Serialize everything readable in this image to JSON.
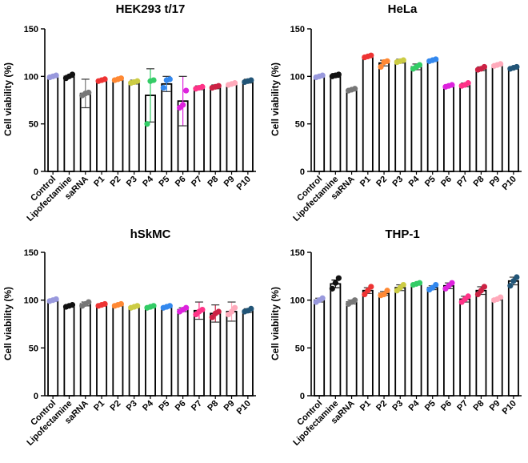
{
  "chart_data": [
    {
      "type": "bar",
      "title": "HEK293 t/17",
      "xlabel": "",
      "ylabel": "Cell viability (%)",
      "ylim": [
        0,
        150
      ],
      "yticks": [
        "0",
        "50",
        "100",
        "150"
      ],
      "categories": [
        "Control",
        "Lipofectamine",
        "saRNA",
        "P1",
        "P2",
        "P3",
        "P4",
        "P5",
        "P6",
        "P7",
        "P8",
        "P9",
        "P10"
      ],
      "values": [
        100,
        100,
        82,
        96,
        97,
        94,
        80,
        92,
        74,
        88,
        89,
        92,
        95
      ],
      "errors": [
        1,
        1,
        15,
        1,
        1,
        2,
        28,
        8,
        26,
        2,
        2,
        1,
        2
      ],
      "points": [
        [
          99,
          100,
          101
        ],
        [
          98,
          100,
          102
        ],
        [
          80,
          82,
          83
        ],
        [
          95,
          96,
          97
        ],
        [
          96,
          97,
          98
        ],
        [
          93,
          94,
          95
        ],
        [
          50,
          95,
          96
        ],
        [
          88,
          96,
          97
        ],
        [
          67,
          70,
          85
        ],
        [
          87,
          88,
          89
        ],
        [
          88,
          89,
          90
        ],
        [
          91,
          92,
          93
        ],
        [
          94,
          95,
          96
        ]
      ],
      "colors": [
        "#9999dd",
        "#111111",
        "#777777",
        "#ee3333",
        "#ff8833",
        "#cccc44",
        "#33cc66",
        "#3388ee",
        "#dd22dd",
        "#ff3388",
        "#cc2244",
        "#ffaabb",
        "#225577"
      ]
    },
    {
      "type": "bar",
      "title": "HeLa",
      "xlabel": "",
      "ylabel": "Cell viability (%)",
      "ylim": [
        0,
        150
      ],
      "yticks": [
        "0",
        "50",
        "100",
        "150"
      ],
      "categories": [
        "Control",
        "Lipofectamine",
        "saRNA",
        "P1",
        "P2",
        "P3",
        "P4",
        "P5",
        "P6",
        "P7",
        "P8",
        "P9",
        "P10"
      ],
      "values": [
        100,
        101,
        86,
        121,
        114,
        116,
        110,
        117,
        90,
        91,
        108,
        112,
        109
      ],
      "errors": [
        1,
        2,
        1,
        1,
        3,
        2,
        3,
        1,
        1,
        2,
        2,
        1,
        1
      ],
      "points": [
        [
          99,
          100,
          101
        ],
        [
          100,
          101,
          102
        ],
        [
          85,
          86,
          87
        ],
        [
          120,
          121,
          122
        ],
        [
          110,
          115,
          116
        ],
        [
          115,
          116,
          117
        ],
        [
          108,
          110,
          112
        ],
        [
          116,
          117,
          118
        ],
        [
          89,
          90,
          91
        ],
        [
          90,
          91,
          93
        ],
        [
          107,
          108,
          110
        ],
        [
          111,
          112,
          113
        ],
        [
          108,
          109,
          110
        ]
      ],
      "colors": [
        "#9999dd",
        "#111111",
        "#777777",
        "#ee3333",
        "#ff8833",
        "#cccc44",
        "#33cc66",
        "#3388ee",
        "#dd22dd",
        "#ff3388",
        "#cc2244",
        "#ffaabb",
        "#225577"
      ]
    },
    {
      "type": "bar",
      "title": "hSkMC",
      "xlabel": "",
      "ylabel": "Cell viability (%)",
      "ylim": [
        0,
        150
      ],
      "yticks": [
        "0",
        "50",
        "100",
        "150"
      ],
      "categories": [
        "Control",
        "Lipofectamine",
        "saRNA",
        "P1",
        "P2",
        "P3",
        "P4",
        "P5",
        "P6",
        "P7",
        "P8",
        "P9",
        "P10"
      ],
      "values": [
        100,
        94,
        96,
        95,
        95,
        93,
        93,
        93,
        90,
        89,
        86,
        88,
        89
      ],
      "errors": [
        1,
        1,
        2,
        1,
        1,
        1,
        1,
        1,
        2,
        9,
        9,
        10,
        2
      ],
      "points": [
        [
          99,
          100,
          101
        ],
        [
          93,
          94,
          95
        ],
        [
          94,
          96,
          98
        ],
        [
          94,
          95,
          96
        ],
        [
          94,
          95,
          96
        ],
        [
          92,
          93,
          94
        ],
        [
          92,
          93,
          94
        ],
        [
          92,
          93,
          94
        ],
        [
          88,
          90,
          92
        ],
        [
          85,
          88,
          90
        ],
        [
          82,
          86,
          88
        ],
        [
          85,
          88,
          92
        ],
        [
          88,
          89,
          91
        ]
      ],
      "colors": [
        "#9999dd",
        "#111111",
        "#777777",
        "#ee3333",
        "#ff8833",
        "#cccc44",
        "#33cc66",
        "#3388ee",
        "#dd22dd",
        "#ff3388",
        "#cc2244",
        "#ffaabb",
        "#225577"
      ]
    },
    {
      "type": "bar",
      "title": "THP-1",
      "xlabel": "",
      "ylabel": "Cell viability (%)",
      "ylim": [
        0,
        150
      ],
      "yticks": [
        "0",
        "50",
        "100",
        "150"
      ],
      "categories": [
        "Control",
        "Lipofectamine",
        "saRNA",
        "P1",
        "P2",
        "P3",
        "P4",
        "P5",
        "P6",
        "P7",
        "P8",
        "P9",
        "P10"
      ],
      "values": [
        100,
        117,
        98,
        110,
        107,
        113,
        117,
        113,
        115,
        101,
        110,
        101,
        120
      ],
      "errors": [
        2,
        4,
        2,
        3,
        2,
        3,
        1,
        2,
        3,
        3,
        4,
        1,
        4
      ],
      "points": [
        [
          98,
          100,
          102
        ],
        [
          112,
          118,
          123
        ],
        [
          96,
          98,
          100
        ],
        [
          106,
          110,
          114
        ],
        [
          105,
          106,
          110
        ],
        [
          110,
          113,
          116
        ],
        [
          116,
          117,
          118
        ],
        [
          111,
          113,
          116
        ],
        [
          112,
          115,
          118
        ],
        [
          98,
          101,
          104
        ],
        [
          106,
          110,
          114
        ],
        [
          100,
          101,
          103
        ],
        [
          115,
          120,
          124
        ]
      ],
      "colors": [
        "#9999dd",
        "#111111",
        "#777777",
        "#ee3333",
        "#ff8833",
        "#cccc44",
        "#33cc66",
        "#3388ee",
        "#dd22dd",
        "#ff3388",
        "#cc2244",
        "#ffaabb",
        "#225577"
      ]
    }
  ]
}
